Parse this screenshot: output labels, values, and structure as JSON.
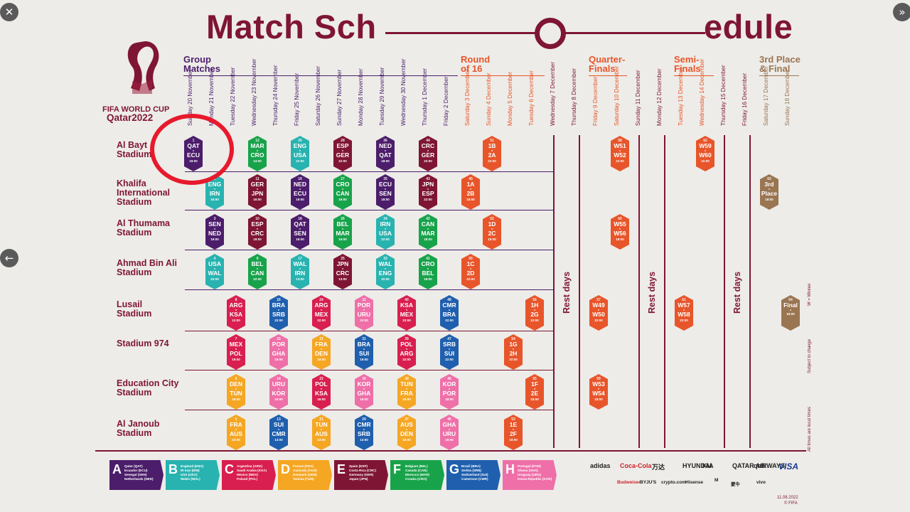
{
  "viewer": {
    "close_icon": "✕",
    "next_icon": "»",
    "prev_icon": "←"
  },
  "poster": {
    "title_left": "Match Sch",
    "title_right": "edule",
    "logo_line1": "FIFA WORLD CUP",
    "logo_line2": "Qatar2022",
    "stages": {
      "group": "Group\nMatches",
      "r16": "Round\nof 16",
      "qf": "Quarter-\nFinals",
      "sf": "Semi-\nFinals",
      "final": "3rd Place\n& Final"
    },
    "dates": [
      "Sunday 20 November",
      "Monday 21 November",
      "Tuesday 22 November",
      "Wednesday 23 November",
      "Thursday 24 November",
      "Friday 25 November",
      "Saturday 26 November",
      "Sunday 27 November",
      "Monday 28 November",
      "Tuesday 29 November",
      "Wednesday 30 November",
      "Thursday 1 December",
      "Friday 2 December",
      "Saturday 3 December",
      "Sunday 4 December",
      "Monday 5 December",
      "Tuesday 6 December",
      "Wednesday 7 December",
      "Thursday 8 December",
      "Friday 9 December",
      "Saturday 10 December",
      "Sunday 11 December",
      "Monday 12 December",
      "Tuesday 13 December",
      "Wednesday 14 December",
      "Thursday 15 December",
      "Friday 16 December",
      "Saturday 17 December",
      "Sunday 18 December"
    ],
    "stadiums": [
      "Al Bayt Stadium",
      "Khalifa International Stadium",
      "Al Thumama Stadium",
      "Ahmad Bin Ali Stadium",
      "Lusail Stadium",
      "Stadium 974",
      "Education City Stadium",
      "Al Janoub Stadium"
    ],
    "rest_label": "Rest days",
    "side_notes": [
      "W = Winner",
      "Subject to change",
      "All times are local times"
    ],
    "footer_date": "11.08.2022",
    "footer_copy": "© FIFA",
    "groups": [
      {
        "L": "A",
        "color": "#4c1d6b",
        "teams": "Qatar (QAT)\nEcuador (ECU)\nSenegal (SEN)\nNetherlands (NED)"
      },
      {
        "L": "B",
        "color": "#28b3b0",
        "teams": "England (ENG)\nIR Iran (IRN)\nUSA (USA)\nWales (WAL)"
      },
      {
        "L": "C",
        "color": "#d81f4f",
        "teams": "Argentina (ARG)\nSaudi Arabia (KSA)\nMexico (MEX)\nPoland (POL)"
      },
      {
        "L": "D",
        "color": "#f5a623",
        "teams": "France (FRA)\nAustralia (AUS)\nDenmark (DEN)\nTunisia (TUN)"
      },
      {
        "L": "E",
        "color": "#7f1535",
        "teams": "Spain (ESP)\nCosta Rica (CRC)\nGermany (GER)\nJapan (JPN)"
      },
      {
        "L": "F",
        "color": "#18a34a",
        "teams": "Belgium (BEL)\nCanada (CAN)\nMorocco (MAR)\nCroatia (CRO)"
      },
      {
        "L": "G",
        "color": "#1f5fae",
        "teams": "Brazil (BRA)\nSerbia (SRB)\nSwitzerland (SUI)\nCameroon (CMR)"
      },
      {
        "L": "H",
        "color": "#ef6fa8",
        "teams": "Portugal (POR)\nGhana (GHA)\nUruguay (URU)\nKorea Republic (KOR)"
      }
    ],
    "sponsors": [
      "adidas",
      "Coca-Cola",
      "万达",
      "HYUNDAI",
      "KIA",
      "QATAR AIRWAYS",
      "qnb",
      "VISA",
      "Budweiser",
      "BYJU'S",
      "crypto.com",
      "Hisense",
      "M",
      "蒙牛",
      "vivo"
    ],
    "matches": [
      {
        "c": 0,
        "r": 0,
        "n": "1",
        "a": "QAT",
        "b": "ECU",
        "t": "19:00",
        "g": "A"
      },
      {
        "c": 3,
        "r": 0,
        "n": "12",
        "a": "MAR",
        "b": "CRO",
        "t": "13:00",
        "g": "F"
      },
      {
        "c": 5,
        "r": 0,
        "n": "20",
        "a": "ENG",
        "b": "USA",
        "t": "22:00",
        "g": "B"
      },
      {
        "c": 7,
        "r": 0,
        "n": "28",
        "a": "ESP",
        "b": "GER",
        "t": "22:00",
        "g": "E"
      },
      {
        "c": 9,
        "r": 0,
        "n": "36",
        "a": "NED",
        "b": "QAT",
        "t": "18:00",
        "g": "A"
      },
      {
        "c": 11,
        "r": 0,
        "n": "44",
        "a": "CRC",
        "b": "GER",
        "t": "22:00",
        "g": "E"
      },
      {
        "c": 14,
        "r": 0,
        "n": "51",
        "a": "1B",
        "b": "2A",
        "t": "22:00",
        "g": "K"
      },
      {
        "c": 20,
        "r": 0,
        "n": "58",
        "a": "W51",
        "b": "W52",
        "t": "22:00",
        "g": "K"
      },
      {
        "c": 24,
        "r": 0,
        "n": "62",
        "a": "W59",
        "b": "W60",
        "t": "22:00",
        "g": "K"
      },
      {
        "c": 1,
        "r": 1,
        "n": "2",
        "a": "ENG",
        "b": "IRN",
        "t": "16:00",
        "g": "B"
      },
      {
        "c": 3,
        "r": 1,
        "n": "11",
        "a": "GER",
        "b": "JPN",
        "t": "16:00",
        "g": "E"
      },
      {
        "c": 5,
        "r": 1,
        "n": "19",
        "a": "NED",
        "b": "ECU",
        "t": "19:00",
        "g": "A"
      },
      {
        "c": 7,
        "r": 1,
        "n": "27",
        "a": "CRO",
        "b": "CAN",
        "t": "19:00",
        "g": "F"
      },
      {
        "c": 9,
        "r": 1,
        "n": "35",
        "a": "ECU",
        "b": "SEN",
        "t": "18:00",
        "g": "A"
      },
      {
        "c": 11,
        "r": 1,
        "n": "43",
        "a": "JPN",
        "b": "ESP",
        "t": "22:00",
        "g": "E"
      },
      {
        "c": 13,
        "r": 1,
        "n": "49",
        "a": "1A",
        "b": "2B",
        "t": "18:00",
        "g": "K"
      },
      {
        "c": 27,
        "r": 1,
        "n": "63",
        "a": "3rd",
        "b": "Place",
        "t": "18:00",
        "g": "P"
      },
      {
        "c": 1,
        "r": 2,
        "n": "3",
        "a": "SEN",
        "b": "NED",
        "t": "19:00",
        "g": "A"
      },
      {
        "c": 3,
        "r": 2,
        "n": "10",
        "a": "ESP",
        "b": "CRC",
        "t": "19:00",
        "g": "E"
      },
      {
        "c": 5,
        "r": 2,
        "n": "18",
        "a": "QAT",
        "b": "SEN",
        "t": "16:00",
        "g": "A"
      },
      {
        "c": 7,
        "r": 2,
        "n": "26",
        "a": "BEL",
        "b": "MAR",
        "t": "16:00",
        "g": "F"
      },
      {
        "c": 9,
        "r": 2,
        "n": "34",
        "a": "IRN",
        "b": "USA",
        "t": "22:00",
        "g": "B"
      },
      {
        "c": 11,
        "r": 2,
        "n": "42",
        "a": "CAN",
        "b": "MAR",
        "t": "18:00",
        "g": "F"
      },
      {
        "c": 14,
        "r": 2,
        "n": "52",
        "a": "1D",
        "b": "2C",
        "t": "18:00",
        "g": "K"
      },
      {
        "c": 20,
        "r": 2,
        "n": "60",
        "a": "W55",
        "b": "W56",
        "t": "18:00",
        "g": "K"
      },
      {
        "c": 1,
        "r": 3,
        "n": "4",
        "a": "USA",
        "b": "WAL",
        "t": "22:00",
        "g": "B"
      },
      {
        "c": 3,
        "r": 3,
        "n": "9",
        "a": "BEL",
        "b": "CAN",
        "t": "22:00",
        "g": "F"
      },
      {
        "c": 5,
        "r": 3,
        "n": "17",
        "a": "WAL",
        "b": "IRN",
        "t": "13:00",
        "g": "B"
      },
      {
        "c": 7,
        "r": 3,
        "n": "25",
        "a": "JPN",
        "b": "CRC",
        "t": "13:00",
        "g": "E"
      },
      {
        "c": 9,
        "r": 3,
        "n": "33",
        "a": "WAL",
        "b": "ENG",
        "t": "22:00",
        "g": "B"
      },
      {
        "c": 11,
        "r": 3,
        "n": "41",
        "a": "CRO",
        "b": "BEL",
        "t": "18:00",
        "g": "F"
      },
      {
        "c": 13,
        "r": 3,
        "n": "50",
        "a": "1C",
        "b": "2D",
        "t": "22:00",
        "g": "K"
      },
      {
        "c": 2,
        "r": 4,
        "n": "8",
        "a": "ARG",
        "b": "KSA",
        "t": "13:00",
        "g": "C"
      },
      {
        "c": 4,
        "r": 4,
        "n": "16",
        "a": "BRA",
        "b": "SRB",
        "t": "22:00",
        "g": "G"
      },
      {
        "c": 6,
        "r": 4,
        "n": "24",
        "a": "ARG",
        "b": "MEX",
        "t": "22:00",
        "g": "C"
      },
      {
        "c": 8,
        "r": 4,
        "n": "32",
        "a": "POR",
        "b": "URU",
        "t": "22:00",
        "g": "H"
      },
      {
        "c": 10,
        "r": 4,
        "n": "40",
        "a": "KSA",
        "b": "MEX",
        "t": "22:00",
        "g": "C"
      },
      {
        "c": 12,
        "r": 4,
        "n": "48",
        "a": "CMR",
        "b": "BRA",
        "t": "22:00",
        "g": "G"
      },
      {
        "c": 16,
        "r": 4,
        "n": "56",
        "a": "1H",
        "b": "2G",
        "t": "22:00",
        "g": "K"
      },
      {
        "c": 19,
        "r": 4,
        "n": "57",
        "a": "W49",
        "b": "W50",
        "t": "22:00",
        "g": "K"
      },
      {
        "c": 23,
        "r": 4,
        "n": "61",
        "a": "W57",
        "b": "W58",
        "t": "22:00",
        "g": "K"
      },
      {
        "c": 28,
        "r": 4,
        "n": "64",
        "a": "Final",
        "b": "",
        "t": "18:00",
        "g": "P"
      },
      {
        "c": 2,
        "r": 5,
        "n": "7",
        "a": "MEX",
        "b": "POL",
        "t": "19:00",
        "g": "C"
      },
      {
        "c": 4,
        "r": 5,
        "n": "15",
        "a": "POR",
        "b": "GHA",
        "t": "19:00",
        "g": "H"
      },
      {
        "c": 6,
        "r": 5,
        "n": "23",
        "a": "FRA",
        "b": "DEN",
        "t": "19:00",
        "g": "D"
      },
      {
        "c": 8,
        "r": 5,
        "n": "31",
        "a": "BRA",
        "b": "SUI",
        "t": "19:00",
        "g": "G"
      },
      {
        "c": 10,
        "r": 5,
        "n": "39",
        "a": "POL",
        "b": "ARG",
        "t": "22:00",
        "g": "C"
      },
      {
        "c": 12,
        "r": 5,
        "n": "47",
        "a": "SRB",
        "b": "SUI",
        "t": "22:00",
        "g": "G"
      },
      {
        "c": 15,
        "r": 5,
        "n": "54",
        "a": "1G",
        "b": "2H",
        "t": "22:00",
        "g": "K"
      },
      {
        "c": 2,
        "r": 6,
        "n": "6",
        "a": "DEN",
        "b": "TUN",
        "t": "16:00",
        "g": "D"
      },
      {
        "c": 4,
        "r": 6,
        "n": "14",
        "a": "URU",
        "b": "KOR",
        "t": "16:00",
        "g": "H"
      },
      {
        "c": 6,
        "r": 6,
        "n": "22",
        "a": "POL",
        "b": "KSA",
        "t": "16:00",
        "g": "C"
      },
      {
        "c": 8,
        "r": 6,
        "n": "30",
        "a": "KOR",
        "b": "GHA",
        "t": "16:00",
        "g": "H"
      },
      {
        "c": 10,
        "r": 6,
        "n": "38",
        "a": "TUN",
        "b": "FRA",
        "t": "18:00",
        "g": "D"
      },
      {
        "c": 12,
        "r": 6,
        "n": "46",
        "a": "KOR",
        "b": "POR",
        "t": "18:00",
        "g": "H"
      },
      {
        "c": 16,
        "r": 6,
        "n": "55",
        "a": "1F",
        "b": "2E",
        "t": "18:00",
        "g": "K"
      },
      {
        "c": 19,
        "r": 6,
        "n": "59",
        "a": "W53",
        "b": "W54",
        "t": "18:00",
        "g": "K"
      },
      {
        "c": 2,
        "r": 7,
        "n": "5",
        "a": "FRA",
        "b": "AUS",
        "t": "22:00",
        "g": "D"
      },
      {
        "c": 4,
        "r": 7,
        "n": "13",
        "a": "SUI",
        "b": "CMR",
        "t": "13:00",
        "g": "G"
      },
      {
        "c": 6,
        "r": 7,
        "n": "21",
        "a": "TUN",
        "b": "AUS",
        "t": "13:00",
        "g": "D"
      },
      {
        "c": 8,
        "r": 7,
        "n": "29",
        "a": "CMR",
        "b": "SRB",
        "t": "13:00",
        "g": "G"
      },
      {
        "c": 10,
        "r": 7,
        "n": "37",
        "a": "AUS",
        "b": "DEN",
        "t": "18:00",
        "g": "D"
      },
      {
        "c": 12,
        "r": 7,
        "n": "45",
        "a": "GHA",
        "b": "URU",
        "t": "18:00",
        "g": "H"
      },
      {
        "c": 15,
        "r": 7,
        "n": "53",
        "a": "1E",
        "b": "2F",
        "t": "18:00",
        "g": "K"
      }
    ],
    "group_colors": {
      "A": "#4c1d6b",
      "B": "#28b3b0",
      "C": "#d81f4f",
      "D": "#f5a623",
      "E": "#7f1535",
      "F": "#18a34a",
      "G": "#1f5fae",
      "H": "#ef6fa8",
      "K": "#e8552a",
      "P": "#9a7552"
    },
    "annotation_color": "#e8192c"
  }
}
